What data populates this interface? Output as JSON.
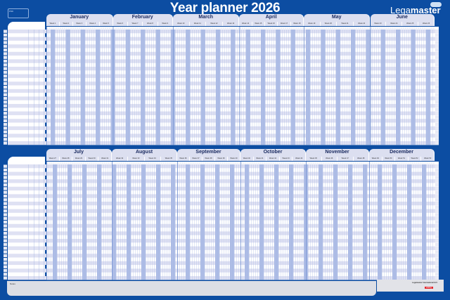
{
  "title": "Year planner 2026",
  "brand": {
    "name_light": "Lega",
    "name_bold": "master"
  },
  "fsc_label": "FSC",
  "notes_label": "Notes",
  "footer": {
    "company": "Legamaster International B.V.",
    "brand_small": "edding"
  },
  "rows": 31,
  "colors": {
    "background": "#0c4da2",
    "row_stripe": "#dfe1f3",
    "weekend": "#aebde6",
    "grid_line": "#9fb3df",
    "header": "#dcdff0",
    "brand_red": "#e3262b"
  },
  "halves": [
    {
      "months": [
        {
          "name": "January",
          "days": 31,
          "weeks": [
            "Week 1",
            "Week 2",
            "Week 3",
            "Week 4",
            "Week 5"
          ]
        },
        {
          "name": "February",
          "days": 28,
          "weeks": [
            "Week 6",
            "Week 7",
            "Week 8",
            "Week 9"
          ]
        },
        {
          "name": "March",
          "days": 31,
          "weeks": [
            "Week 10",
            "Week 11",
            "Week 12",
            "Week 13"
          ]
        },
        {
          "name": "April",
          "days": 30,
          "weeks": [
            "Week 14",
            "Week 15",
            "Week 16",
            "Week 17",
            "Week 18"
          ]
        },
        {
          "name": "May",
          "days": 31,
          "weeks": [
            "Week 19",
            "Week 20",
            "Week 21",
            "Week 22"
          ]
        },
        {
          "name": "June",
          "days": 30,
          "weeks": [
            "Week 23",
            "Week 24",
            "Week 25",
            "Week 26"
          ]
        }
      ]
    },
    {
      "months": [
        {
          "name": "July",
          "days": 31,
          "weeks": [
            "Week 27",
            "Week 28",
            "Week 29",
            "Week 30",
            "Week 31"
          ]
        },
        {
          "name": "August",
          "days": 31,
          "weeks": [
            "Week 32",
            "Week 33",
            "Week 34",
            "Week 35"
          ]
        },
        {
          "name": "September",
          "days": 30,
          "weeks": [
            "Week 36",
            "Week 37",
            "Week 38",
            "Week 39",
            "Week 40"
          ]
        },
        {
          "name": "October",
          "days": 31,
          "weeks": [
            "Week 40",
            "Week 41",
            "Week 42",
            "Week 43",
            "Week 44"
          ]
        },
        {
          "name": "November",
          "days": 30,
          "weeks": [
            "Week 45",
            "Week 46",
            "Week 47",
            "Week 48"
          ]
        },
        {
          "name": "December",
          "days": 31,
          "weeks": [
            "Week 49",
            "Week 50",
            "Week 51",
            "Week 52",
            "Week 53"
          ]
        }
      ]
    }
  ]
}
